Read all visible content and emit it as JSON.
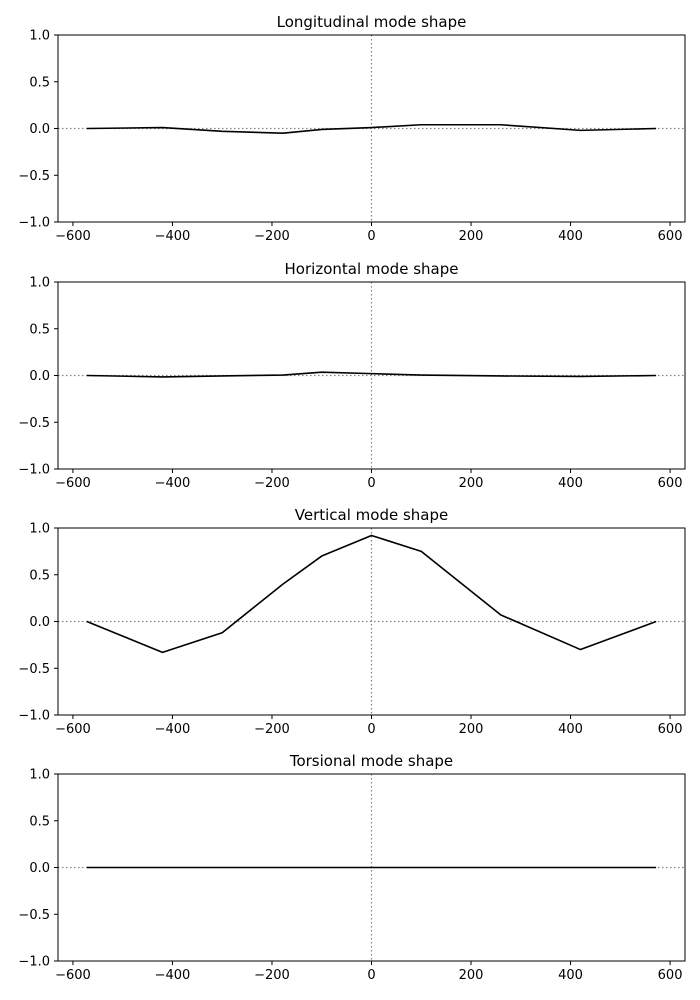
{
  "chart_data": [
    {
      "type": "line",
      "title": "Longitudinal mode shape",
      "xlim": [
        -630,
        630
      ],
      "ylim": [
        -1.0,
        1.0
      ],
      "xticks": [
        -600,
        -400,
        -200,
        0,
        200,
        400,
        600
      ],
      "yticks": [
        -1.0,
        -0.5,
        0.0,
        0.5,
        1.0
      ],
      "xtick_labels": [
        "−600",
        "−400",
        "−200",
        "0",
        "200",
        "400",
        "600"
      ],
      "ytick_labels": [
        "−1.0",
        "−0.5",
        "0.0",
        "0.5",
        "1.0"
      ],
      "reference_lines": {
        "x": 0,
        "y": 0
      },
      "series": [
        {
          "x": [
            -572,
            -420,
            -300,
            -178,
            -100,
            0,
            100,
            260,
            420,
            572
          ],
          "y": [
            0.0,
            0.01,
            -0.03,
            -0.05,
            -0.01,
            0.01,
            0.04,
            0.04,
            -0.02,
            0.0
          ]
        }
      ]
    },
    {
      "type": "line",
      "title": "Horizontal mode shape",
      "xlim": [
        -630,
        630
      ],
      "ylim": [
        -1.0,
        1.0
      ],
      "xticks": [
        -600,
        -400,
        -200,
        0,
        200,
        400,
        600
      ],
      "yticks": [
        -1.0,
        -0.5,
        0.0,
        0.5,
        1.0
      ],
      "xtick_labels": [
        "−600",
        "−400",
        "−200",
        "0",
        "200",
        "400",
        "600"
      ],
      "ytick_labels": [
        "−1.0",
        "−0.5",
        "0.0",
        "0.5",
        "1.0"
      ],
      "reference_lines": {
        "x": 0,
        "y": 0
      },
      "series": [
        {
          "x": [
            -572,
            -420,
            -300,
            -178,
            -100,
            0,
            100,
            260,
            420,
            572
          ],
          "y": [
            0.0,
            -0.015,
            -0.005,
            0.005,
            0.035,
            0.02,
            0.005,
            -0.005,
            -0.01,
            0.0
          ]
        }
      ]
    },
    {
      "type": "line",
      "title": "Vertical mode shape",
      "xlim": [
        -630,
        630
      ],
      "ylim": [
        -1.0,
        1.0
      ],
      "xticks": [
        -600,
        -400,
        -200,
        0,
        200,
        400,
        600
      ],
      "yticks": [
        -1.0,
        -0.5,
        0.0,
        0.5,
        1.0
      ],
      "xtick_labels": [
        "−600",
        "−400",
        "−200",
        "0",
        "200",
        "400",
        "600"
      ],
      "ytick_labels": [
        "−1.0",
        "−0.5",
        "0.0",
        "0.5",
        "1.0"
      ],
      "reference_lines": {
        "x": 0,
        "y": 0
      },
      "series": [
        {
          "x": [
            -572,
            -420,
            -300,
            -178,
            -100,
            0,
            100,
            260,
            420,
            572
          ],
          "y": [
            0.0,
            -0.33,
            -0.12,
            0.4,
            0.7,
            0.92,
            0.75,
            0.07,
            -0.3,
            0.0
          ]
        }
      ]
    },
    {
      "type": "line",
      "title": "Torsional mode shape",
      "xlim": [
        -630,
        630
      ],
      "ylim": [
        -1.0,
        1.0
      ],
      "xticks": [
        -600,
        -400,
        -200,
        0,
        200,
        400,
        600
      ],
      "yticks": [
        -1.0,
        -0.5,
        0.0,
        0.5,
        1.0
      ],
      "xtick_labels": [
        "−600",
        "−400",
        "−200",
        "0",
        "200",
        "400",
        "600"
      ],
      "ytick_labels": [
        "−1.0",
        "−0.5",
        "0.0",
        "0.5",
        "1.0"
      ],
      "reference_lines": {
        "x": 0,
        "y": 0
      },
      "series": [
        {
          "x": [
            -572,
            -420,
            -300,
            -178,
            -100,
            0,
            100,
            260,
            420,
            572
          ],
          "y": [
            0.0,
            0.0,
            0.0,
            0.0,
            0.0,
            0.0,
            0.0,
            0.0,
            0.0,
            0.0
          ]
        }
      ]
    }
  ]
}
